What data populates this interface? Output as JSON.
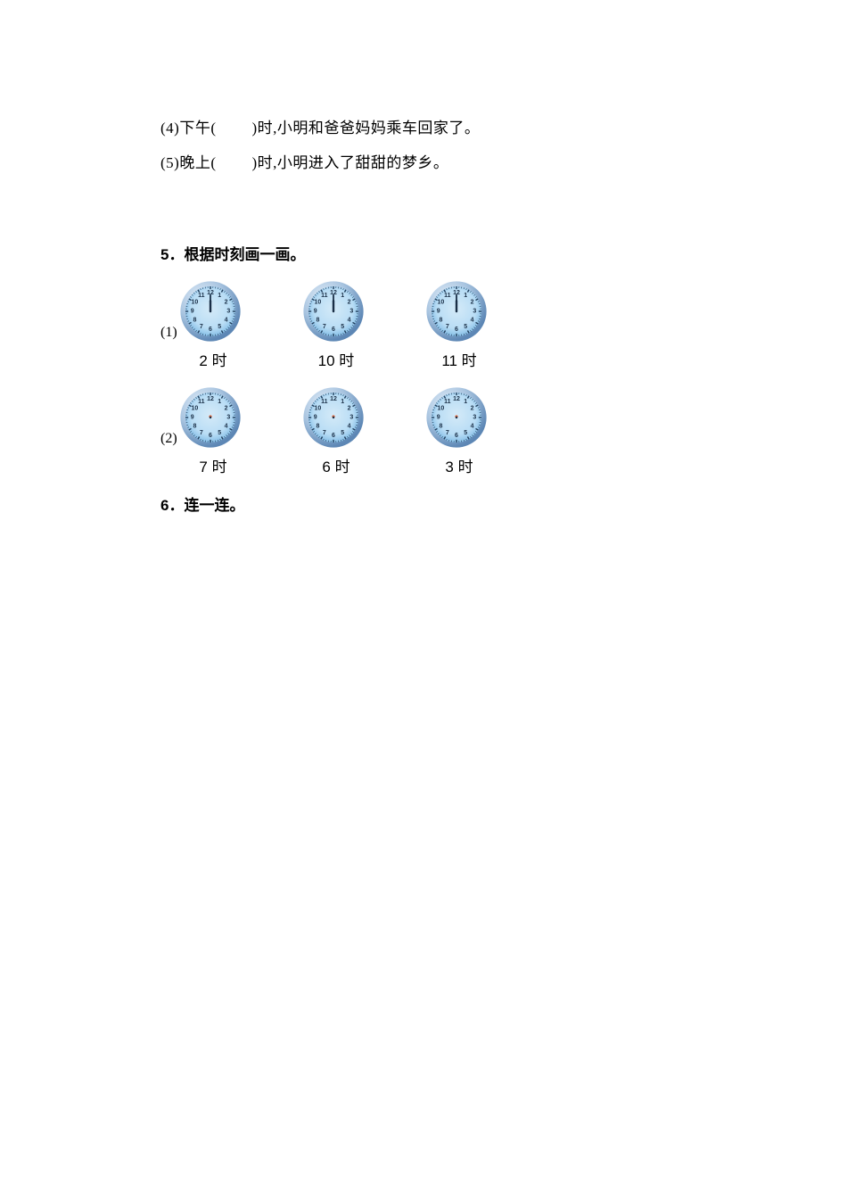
{
  "q4": {
    "num": "(4)",
    "pre": "下午(",
    "post": ")时,小明和爸爸妈妈乘车回家了。"
  },
  "q5": {
    "num": "(5)",
    "pre": "晚上(",
    "post": ")时,小明进入了甜甜的梦乡。"
  },
  "section5": {
    "title": "5．根据时刻画一画。"
  },
  "rows": [
    {
      "num": "(1)",
      "clocks": [
        {
          "type": "with_hands",
          "hour_angle": 0,
          "minute_angle": 0
        },
        {
          "type": "with_hands",
          "hour_angle": 0,
          "minute_angle": 0
        },
        {
          "type": "with_hands",
          "hour_angle": 0,
          "minute_angle": 0
        }
      ],
      "labels": [
        "2 时",
        "10 时",
        "11 时"
      ]
    },
    {
      "num": "(2)",
      "clocks": [
        {
          "type": "no_hands"
        },
        {
          "type": "no_hands"
        },
        {
          "type": "no_hands"
        }
      ],
      "labels": [
        "7 时",
        "6 时",
        "3 时"
      ]
    }
  ],
  "section6": {
    "title": "6．连一连。"
  },
  "clock_style": {
    "size": 70,
    "bezel_outer": "#a8c4e0",
    "bezel_highlight": "#e8f2fb",
    "bezel_shadow": "#5d87b5",
    "face_outer": "#77b6e3",
    "face_highlight": "#b9ddf5",
    "face_center": "#d4eaf8",
    "tick_color": "#1f3c5a",
    "number_color": "#1a2f47",
    "dot_color": "#d9653a",
    "number_font_size": 7
  }
}
